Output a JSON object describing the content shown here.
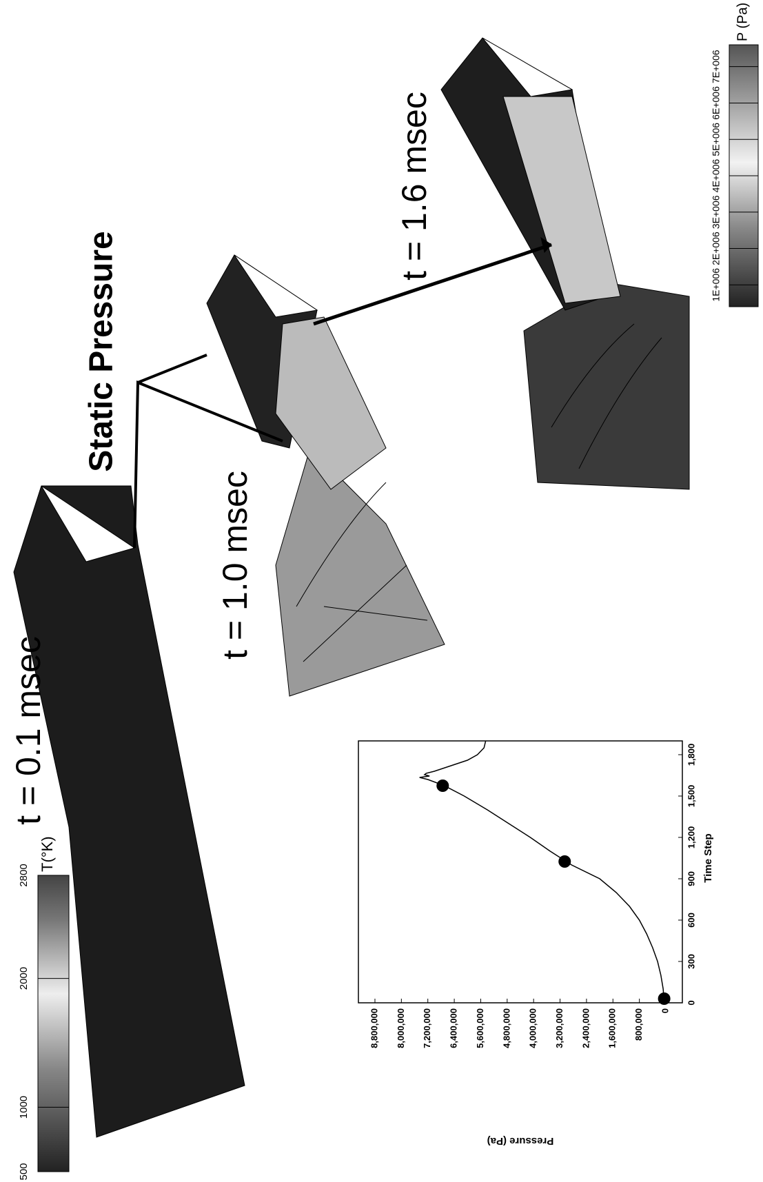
{
  "temperature_scale": {
    "title": "T(°K)",
    "lim": [
      500,
      2800
    ],
    "ticks": [
      2800,
      2000,
      1000,
      500
    ]
  },
  "pressure_scale": {
    "title": "P (Pa)",
    "lim": [
      400000,
      7600000
    ],
    "ticks": [
      {
        "value": 7000000,
        "label": "7E+006"
      },
      {
        "value": 6000000,
        "label": "6E+006"
      },
      {
        "value": 5000000,
        "label": "5E+006"
      },
      {
        "value": 4000000,
        "label": "4E+006"
      },
      {
        "value": 3000000,
        "label": "3E+006"
      },
      {
        "value": 2000000,
        "label": "2E+006"
      },
      {
        "value": 1000000,
        "label": "1E+006"
      }
    ]
  },
  "snapshots": {
    "title": "Static Pressure",
    "labels": [
      "t = 0.1 msec",
      "t = 1.0 msec",
      "t = 1.6 msec"
    ]
  },
  "chart_data": {
    "type": "line",
    "x_label": "Time Step",
    "y_label": "Pressure (Pa)",
    "xlim": [
      0,
      1900
    ],
    "ylim": [
      -500000,
      9300000
    ],
    "xticks": [
      0,
      300,
      600,
      900,
      {
        "value": 1200,
        "label": "1,200"
      },
      {
        "value": 1500,
        "label": "1,500"
      },
      {
        "value": 1800,
        "label": "1,800"
      }
    ],
    "yticks": [
      0,
      {
        "value": 800000,
        "label": "800,000"
      },
      {
        "value": 1600000,
        "label": "1,600,000"
      },
      {
        "value": 2400000,
        "label": "2,400,000"
      },
      {
        "value": 3200000,
        "label": "3,200,000"
      },
      {
        "value": 4000000,
        "label": "4,000,000"
      },
      {
        "value": 4800000,
        "label": "4,800,000"
      },
      {
        "value": 5600000,
        "label": "5,600,000"
      },
      {
        "value": 6400000,
        "label": "6,400,000"
      },
      {
        "value": 7200000,
        "label": "7,200,000"
      },
      {
        "value": 8000000,
        "label": "8,000,000"
      },
      {
        "value": 8800000,
        "label": "8,800,000"
      }
    ],
    "series": [
      {
        "color": "#000000",
        "x": [
          0,
          100,
          200,
          300,
          400,
          500,
          600,
          700,
          800,
          900,
          1000,
          1100,
          1200,
          1300,
          1400,
          1500,
          1575,
          1620,
          1635,
          1645,
          1655,
          1665,
          1680,
          1720,
          1760,
          1800,
          1850,
          1900
        ],
        "values": [
          50000,
          80000,
          150000,
          250000,
          400000,
          580000,
          800000,
          1100000,
          1500000,
          2000000,
          2850000,
          3500000,
          4100000,
          4750000,
          5400000,
          6100000,
          6700000,
          7200000,
          7450000,
          7150000,
          7300000,
          7250000,
          7000000,
          6500000,
          6000000,
          5700000,
          5500000,
          5450000
        ]
      }
    ],
    "markers": {
      "color": "#000000",
      "x": [
        30,
        1025,
        1575
      ],
      "values": [
        50000,
        3060000,
        6750000
      ]
    }
  }
}
